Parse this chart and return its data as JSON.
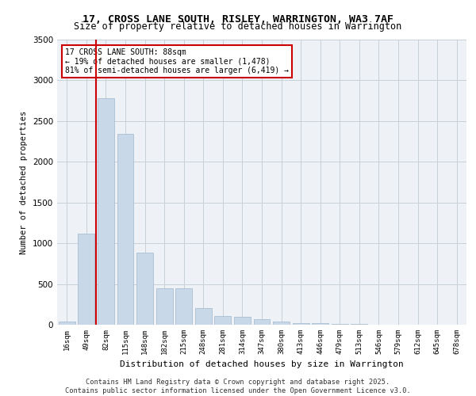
{
  "title_line1": "17, CROSS LANE SOUTH, RISLEY, WARRINGTON, WA3 7AF",
  "title_line2": "Size of property relative to detached houses in Warrington",
  "xlabel": "Distribution of detached houses by size in Warrington",
  "ylabel": "Number of detached properties",
  "bar_color": "#c8d8e8",
  "bar_edge_color": "#a0b8cc",
  "grid_color": "#c8d0d8",
  "bg_color": "#eef2f7",
  "annotation_text": "17 CROSS LANE SOUTH: 88sqm\n← 19% of detached houses are smaller (1,478)\n81% of semi-detached houses are larger (6,419) →",
  "vline_x": 88,
  "vline_color": "#cc0000",
  "categories": [
    "16sqm",
    "49sqm",
    "82sqm",
    "115sqm",
    "148sqm",
    "182sqm",
    "215sqm",
    "248sqm",
    "281sqm",
    "314sqm",
    "347sqm",
    "380sqm",
    "413sqm",
    "446sqm",
    "479sqm",
    "513sqm",
    "546sqm",
    "579sqm",
    "612sqm",
    "645sqm",
    "678sqm"
  ],
  "bar_heights": [
    40,
    1120,
    2780,
    2340,
    880,
    450,
    450,
    205,
    110,
    95,
    65,
    40,
    18,
    18,
    12,
    8,
    4,
    3,
    3,
    2,
    2
  ],
  "ylim": [
    0,
    3500
  ],
  "yticks": [
    0,
    500,
    1000,
    1500,
    2000,
    2500,
    3000,
    3500
  ],
  "footer_text": "Contains HM Land Registry data © Crown copyright and database right 2025.\nContains public sector information licensed under the Open Government Licence v3.0.",
  "annotation_box_color": "#ffffff",
  "annotation_box_edge": "#cc0000"
}
